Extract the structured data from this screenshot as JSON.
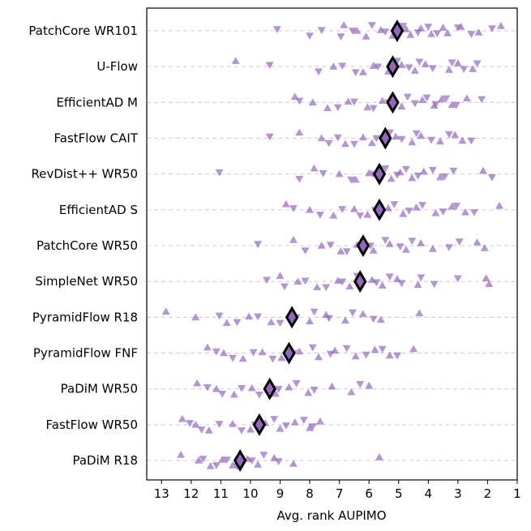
{
  "chart_data": {
    "type": "scatter",
    "xlabel": "Avg. rank AUPIMO",
    "xlim": [
      13.5,
      1.0
    ],
    "x_inverted": true,
    "xticks": [
      "13",
      "12",
      "11",
      "10",
      "9",
      "8",
      "7",
      "6",
      "5",
      "4",
      "3",
      "2",
      "1"
    ],
    "grid": "horizontal-dashed",
    "marker_color": "#9467bd",
    "avg_marker_color": "#9467bd",
    "avg_edge_color": "#000000",
    "series": [
      {
        "name": "PatchCore WR101",
        "avg": 5.05,
        "up": [
          6.85,
          6.4,
          6.1,
          5.6,
          5.2,
          4.75,
          4.6,
          4.25,
          3.9,
          3.5,
          3.35,
          2.9,
          2.3,
          1.55
        ],
        "down": [
          9.1,
          8.0,
          7.6,
          6.95,
          6.55,
          5.9,
          5.45,
          4.85,
          4.35,
          4.0,
          3.7,
          3.0,
          2.55,
          1.85
        ]
      },
      {
        "name": "U-Flow",
        "avg": 5.2,
        "up": [
          10.5,
          7.2,
          6.2,
          5.85,
          5.35,
          4.9,
          4.45,
          4.1,
          3.3,
          3.0,
          2.5
        ],
        "down": [
          9.35,
          7.7,
          6.9,
          6.45,
          5.7,
          5.05,
          4.65,
          4.3,
          3.85,
          3.2,
          2.8,
          2.35
        ]
      },
      {
        "name": "EfficientAD M",
        "avg": 5.2,
        "up": [
          8.5,
          7.9,
          7.4,
          6.7,
          6.05,
          5.55,
          4.9,
          4.2,
          3.8,
          3.55,
          3.2,
          2.7
        ],
        "down": [
          8.35,
          7.05,
          6.5,
          5.85,
          5.35,
          4.7,
          4.45,
          4.05,
          3.75,
          3.4,
          3.05,
          2.2
        ]
      },
      {
        "name": "FastFlow CAIT",
        "avg": 5.45,
        "up": [
          8.35,
          7.6,
          6.8,
          6.2,
          5.9,
          5.1,
          4.55,
          4.25,
          3.6,
          3.1,
          2.85
        ],
        "down": [
          9.35,
          7.35,
          7.05,
          6.5,
          5.75,
          5.3,
          4.9,
          4.4,
          3.9,
          3.3,
          2.55
        ]
      },
      {
        "name": "RevDist++ WR50",
        "avg": 5.65,
        "up": [
          7.85,
          7.0,
          6.45,
          6.0,
          5.25,
          4.95,
          4.55,
          4.15,
          3.6,
          2.15
        ],
        "down": [
          11.05,
          8.35,
          7.55,
          6.6,
          5.85,
          5.45,
          5.05,
          4.75,
          4.35,
          3.85,
          3.45,
          3.15,
          1.85
        ]
      },
      {
        "name": "EfficientAD S",
        "avg": 5.65,
        "up": [
          8.8,
          8.0,
          7.2,
          6.5,
          6.05,
          5.35,
          4.85,
          4.4,
          3.75,
          3.2,
          2.75,
          1.6
        ],
        "down": [
          8.55,
          7.65,
          6.9,
          6.3,
          5.8,
          5.15,
          4.65,
          4.2,
          3.5,
          3.05,
          2.45
        ]
      },
      {
        "name": "PatchCore WR50",
        "avg": 6.2,
        "up": [
          8.55,
          7.6,
          6.95,
          6.4,
          5.85,
          5.3,
          4.75,
          4.25,
          3.85,
          2.35,
          2.1
        ],
        "down": [
          9.75,
          8.15,
          7.3,
          6.75,
          5.95,
          5.45,
          4.95,
          4.55,
          3.3,
          2.95
        ]
      },
      {
        "name": "SimpleNet WR50",
        "avg": 6.3,
        "up": [
          9.0,
          8.4,
          7.75,
          7.05,
          6.65,
          5.9,
          5.55,
          5.05,
          4.35,
          2.05,
          1.95
        ],
        "down": [
          9.45,
          8.85,
          8.15,
          7.45,
          6.9,
          6.4,
          5.75,
          5.3,
          4.9,
          4.25,
          3.8,
          3.0
        ]
      },
      {
        "name": "PyramidFlow R18",
        "avg": 8.6,
        "up": [
          12.85,
          11.85,
          10.8,
          10.05,
          9.3,
          8.7,
          8.0,
          7.45,
          6.8,
          6.2,
          5.6,
          4.3
        ],
        "down": [
          11.05,
          10.45,
          9.75,
          9.0,
          8.45,
          7.85,
          7.35,
          6.55,
          5.85
        ]
      },
      {
        "name": "PyramidFlow FNF",
        "avg": 8.7,
        "up": [
          11.45,
          10.9,
          10.25,
          9.6,
          8.95,
          8.35,
          7.7,
          7.15,
          6.45,
          5.8,
          5.3,
          4.5
        ],
        "down": [
          11.15,
          10.6,
          9.9,
          9.25,
          8.55,
          7.9,
          7.3,
          6.75,
          6.1,
          5.55,
          5.05
        ]
      },
      {
        "name": "PaDiM WR50",
        "avg": 9.35,
        "up": [
          11.8,
          11.15,
          10.55,
          9.95,
          9.15,
          8.7,
          8.05,
          7.25,
          6.6,
          6.0
        ],
        "down": [
          11.45,
          10.95,
          10.3,
          9.7,
          9.05,
          8.45,
          7.85,
          6.3
        ]
      },
      {
        "name": "FastFlow WR50",
        "avg": 9.7,
        "up": [
          12.3,
          11.85,
          11.4,
          10.6,
          10.0,
          9.5,
          9.0,
          8.5,
          8.0,
          7.65
        ],
        "down": [
          12.05,
          11.65,
          11.05,
          10.3,
          9.85,
          9.2,
          8.8,
          8.2,
          7.9
        ]
      },
      {
        "name": "PaDiM R18",
        "avg": 10.35,
        "up": [
          12.35,
          11.75,
          11.35,
          10.95,
          10.6,
          10.1,
          9.75,
          9.2,
          8.55,
          5.65
        ],
        "down": [
          11.6,
          11.15,
          10.8,
          10.45,
          9.95,
          9.55,
          9.05
        ]
      }
    ]
  }
}
